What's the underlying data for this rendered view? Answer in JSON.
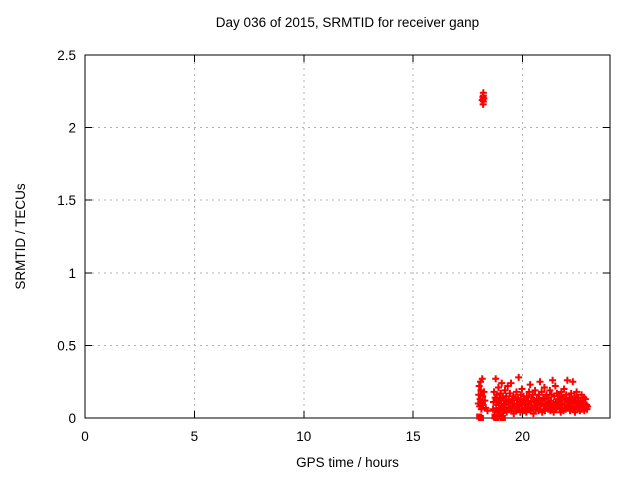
{
  "title": "Day 036 of 2015, SRMTID for receiver ganp",
  "colors": {
    "background": "#ffffff",
    "border": "#000000",
    "grid": "#b0b0b0",
    "series": "#ff0000"
  },
  "chart_data": {
    "type": "scatter",
    "title": "Day 036 of 2015, SRMTID for receiver ganp",
    "xlabel": "GPS time / hours",
    "ylabel": "SRMTID / TECUs",
    "xlim": [
      0,
      24
    ],
    "ylim": [
      0,
      2.5
    ],
    "xticks": [
      0,
      5,
      10,
      15,
      20
    ],
    "xtick_labels": [
      "0",
      "5",
      "10",
      "15",
      "20"
    ],
    "yticks": [
      0,
      0.5,
      1,
      1.5,
      2,
      2.5
    ],
    "ytick_labels": [
      "0",
      "0.5",
      "1",
      "1.5",
      "2",
      "2.5"
    ],
    "grid": true,
    "legend": "none",
    "marker": "plus",
    "series": [
      {
        "name": "SRMTID",
        "color": "#ff0000",
        "points": [
          [
            17.98,
            0.1
          ],
          [
            18.0,
            0.16
          ],
          [
            18.02,
            0.22
          ],
          [
            18.04,
            0.08
          ],
          [
            18.06,
            0.13
          ],
          [
            18.08,
            0.25
          ],
          [
            18.1,
            0.19
          ],
          [
            18.12,
            0.06
          ],
          [
            18.14,
            0.11
          ],
          [
            18.16,
            0.27
          ],
          [
            18.18,
            0.15
          ],
          [
            18.2,
            0.09
          ],
          [
            18.24,
            0.18
          ],
          [
            18.28,
            0.12
          ],
          [
            18.32,
            0.07
          ],
          [
            18.4,
            0.05
          ],
          [
            18.16,
            2.19
          ],
          [
            18.19,
            2.21
          ],
          [
            18.21,
            2.22
          ],
          [
            18.21,
            2.18
          ],
          [
            18.23,
            2.2
          ],
          [
            18.21,
            2.24
          ],
          [
            18.2,
            2.16
          ],
          [
            18.65,
            0.06
          ],
          [
            18.675,
            0.11
          ],
          [
            18.7,
            0.18
          ],
          [
            18.725,
            0.05
          ],
          [
            18.75,
            0.14
          ],
          [
            18.775,
            0.27
          ],
          [
            18.8,
            0.09
          ],
          [
            18.825,
            0.16
          ],
          [
            18.85,
            0.04
          ],
          [
            18.875,
            0.12
          ],
          [
            18.9,
            0.21
          ],
          [
            18.925,
            0.07
          ],
          [
            18.95,
            0.13
          ],
          [
            18.975,
            0.03
          ],
          [
            19.0,
            0.17
          ],
          [
            19.025,
            0.1
          ],
          [
            19.05,
            0.24
          ],
          [
            19.075,
            0.06
          ],
          [
            19.1,
            0.14
          ],
          [
            19.125,
            0.08
          ],
          [
            19.15,
            0.12
          ],
          [
            19.175,
            0.05
          ],
          [
            19.2,
            0.19
          ],
          [
            19.225,
            0.09
          ],
          [
            19.25,
            0.15
          ],
          [
            19.275,
            0.04
          ],
          [
            19.3,
            0.11
          ],
          [
            19.325,
            0.22
          ],
          [
            19.35,
            0.07
          ],
          [
            19.375,
            0.13
          ],
          [
            19.4,
            0.06
          ],
          [
            19.425,
            0.17
          ],
          [
            19.45,
            0.1
          ],
          [
            19.475,
            0.24
          ],
          [
            19.5,
            0.05
          ],
          [
            19.525,
            0.12
          ],
          [
            19.55,
            0.08
          ],
          [
            19.575,
            0.15
          ],
          [
            19.6,
            0.03
          ],
          [
            19.625,
            0.1
          ],
          [
            19.65,
            0.07
          ],
          [
            19.675,
            0.14
          ],
          [
            19.7,
            0.05
          ],
          [
            19.725,
            0.18
          ],
          [
            19.75,
            0.1
          ],
          [
            19.775,
            0.06
          ],
          [
            19.8,
            0.13
          ],
          [
            19.825,
            0.28
          ],
          [
            19.85,
            0.08
          ],
          [
            19.875,
            0.12
          ],
          [
            19.9,
            0.04
          ],
          [
            19.925,
            0.16
          ],
          [
            19.95,
            0.09
          ],
          [
            19.975,
            0.2
          ],
          [
            20.0,
            0.06
          ],
          [
            20.025,
            0.11
          ],
          [
            20.05,
            0.15
          ],
          [
            20.075,
            0.05
          ],
          [
            20.1,
            0.13
          ],
          [
            20.125,
            0.07
          ],
          [
            20.15,
            0.1
          ],
          [
            20.175,
            0.04
          ],
          [
            20.2,
            0.15
          ],
          [
            20.225,
            0.08
          ],
          [
            20.25,
            0.12
          ],
          [
            20.275,
            0.06
          ],
          [
            20.3,
            0.18
          ],
          [
            20.325,
            0.09
          ],
          [
            20.35,
            0.23
          ],
          [
            20.375,
            0.05
          ],
          [
            20.4,
            0.11
          ],
          [
            20.425,
            0.14
          ],
          [
            20.45,
            0.07
          ],
          [
            20.475,
            0.16
          ],
          [
            20.5,
            0.03
          ],
          [
            20.525,
            0.12
          ],
          [
            20.55,
            0.08
          ],
          [
            20.575,
            0.19
          ],
          [
            20.6,
            0.06
          ],
          [
            20.625,
            0.1
          ],
          [
            20.65,
            0.13
          ],
          [
            20.675,
            0.07
          ],
          [
            20.7,
            0.11
          ],
          [
            20.725,
            0.05
          ],
          [
            20.75,
            0.16
          ],
          [
            20.775,
            0.09
          ],
          [
            20.8,
            0.25
          ],
          [
            20.825,
            0.06
          ],
          [
            20.85,
            0.12
          ],
          [
            20.875,
            0.18
          ],
          [
            20.9,
            0.04
          ],
          [
            20.925,
            0.1
          ],
          [
            20.95,
            0.14
          ],
          [
            20.975,
            0.08
          ],
          [
            21.0,
            0.21
          ],
          [
            21.025,
            0.05
          ],
          [
            21.05,
            0.13
          ],
          [
            21.075,
            0.09
          ],
          [
            21.1,
            0.16
          ],
          [
            21.125,
            0.07
          ],
          [
            21.15,
            0.11
          ],
          [
            21.175,
            0.06
          ],
          [
            21.2,
            0.14
          ],
          [
            21.225,
            0.09
          ],
          [
            21.25,
            0.19
          ],
          [
            21.275,
            0.05
          ],
          [
            21.3,
            0.12
          ],
          [
            21.325,
            0.16
          ],
          [
            21.35,
            0.08
          ],
          [
            21.375,
            0.26
          ],
          [
            21.4,
            0.1
          ],
          [
            21.425,
            0.04
          ],
          [
            21.45,
            0.15
          ],
          [
            21.475,
            0.07
          ],
          [
            21.5,
            0.22
          ],
          [
            21.525,
            0.11
          ],
          [
            21.55,
            0.06
          ],
          [
            21.575,
            0.17
          ],
          [
            21.6,
            0.09
          ],
          [
            21.625,
            0.13
          ],
          [
            21.65,
            0.08
          ],
          [
            21.675,
            0.15
          ],
          [
            21.7,
            0.06
          ],
          [
            21.725,
            0.12
          ],
          [
            21.75,
            0.04
          ],
          [
            21.775,
            0.18
          ],
          [
            21.8,
            0.1
          ],
          [
            21.825,
            0.07
          ],
          [
            21.85,
            0.14
          ],
          [
            21.875,
            0.05
          ],
          [
            21.9,
            0.2
          ],
          [
            21.925,
            0.09
          ],
          [
            21.95,
            0.13
          ],
          [
            21.975,
            0.06
          ],
          [
            22.0,
            0.16
          ],
          [
            22.025,
            0.11
          ],
          [
            22.05,
            0.26
          ],
          [
            22.075,
            0.07
          ],
          [
            22.1,
            0.12
          ],
          [
            22.125,
            0.08
          ],
          [
            22.15,
            0.14
          ],
          [
            22.175,
            0.05
          ],
          [
            22.2,
            0.11
          ],
          [
            22.225,
            0.17
          ],
          [
            22.25,
            0.07
          ],
          [
            22.275,
            0.13
          ],
          [
            22.3,
            0.25
          ],
          [
            22.325,
            0.06
          ],
          [
            22.35,
            0.1
          ],
          [
            22.375,
            0.15
          ],
          [
            22.4,
            0.04
          ],
          [
            22.425,
            0.12
          ],
          [
            22.45,
            0.08
          ],
          [
            22.475,
            0.18
          ],
          [
            22.5,
            0.06
          ],
          [
            22.525,
            0.11
          ],
          [
            22.55,
            0.14
          ],
          [
            22.575,
            0.07
          ],
          [
            22.6,
            0.1
          ],
          [
            22.625,
            0.05
          ],
          [
            22.65,
            0.12
          ],
          [
            22.675,
            0.08
          ],
          [
            22.7,
            0.16
          ],
          [
            22.725,
            0.06
          ],
          [
            22.75,
            0.11
          ],
          [
            22.775,
            0.09
          ],
          [
            22.8,
            0.14
          ],
          [
            22.825,
            0.05
          ],
          [
            22.85,
            0.1
          ],
          [
            22.875,
            0.13
          ],
          [
            22.9,
            0.07
          ],
          [
            22.925,
            0.09
          ],
          [
            22.95,
            0.06
          ],
          [
            22.975,
            0.08
          ]
        ],
        "square_points": [
          [
            18.02,
            0.01
          ],
          [
            18.1,
            0.0
          ],
          [
            18.72,
            0.01
          ],
          [
            18.8,
            0.0
          ],
          [
            19.02,
            0.01
          ],
          [
            19.1,
            0.0
          ],
          [
            18.2,
            2.2
          ]
        ]
      }
    ]
  }
}
